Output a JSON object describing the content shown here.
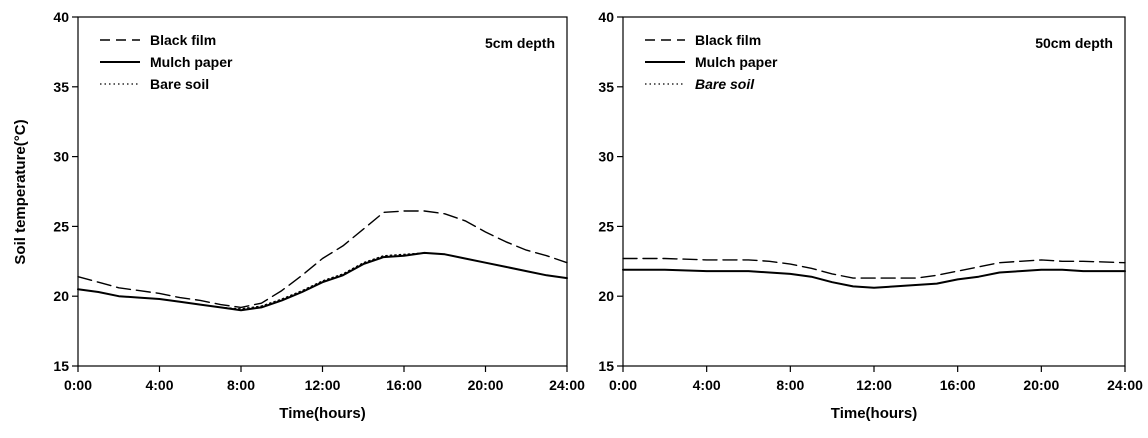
{
  "figure": {
    "ylabel": "Soil temperature(°C)"
  },
  "chart_data": [
    {
      "type": "line",
      "annotation": "5cm depth",
      "xlabel": "Time(hours)",
      "ylabel": "Soil temperature(°C)",
      "xlim": [
        0,
        24
      ],
      "ylim": [
        15,
        40
      ],
      "x_ticks": [
        "0:00",
        "4:00",
        "8:00",
        "12:00",
        "16:00",
        "20:00",
        "24:00"
      ],
      "y_ticks": [
        15,
        20,
        25,
        30,
        35,
        40
      ],
      "grid": false,
      "legend_position": "top-left",
      "series": [
        {
          "name": "Black film",
          "style": "dashed",
          "color": "#000000",
          "x": [
            0,
            1,
            2,
            3,
            4,
            5,
            6,
            7,
            8,
            9,
            10,
            11,
            12,
            13,
            14,
            15,
            16,
            17,
            18,
            19,
            20,
            21,
            22,
            23,
            24
          ],
          "y": [
            21.4,
            21.0,
            20.6,
            20.4,
            20.2,
            19.9,
            19.7,
            19.4,
            19.2,
            19.5,
            20.4,
            21.5,
            22.7,
            23.6,
            24.8,
            26.0,
            26.1,
            26.1,
            25.9,
            25.4,
            24.6,
            23.9,
            23.3,
            22.9,
            22.4
          ],
          "italic": false
        },
        {
          "name": "Mulch paper",
          "style": "solid",
          "color": "#000000",
          "x": [
            0,
            1,
            2,
            3,
            4,
            5,
            6,
            7,
            8,
            9,
            10,
            11,
            12,
            13,
            14,
            15,
            16,
            17,
            18,
            19,
            20,
            21,
            22,
            23,
            24
          ],
          "y": [
            20.5,
            20.3,
            20.0,
            19.9,
            19.8,
            19.6,
            19.4,
            19.2,
            19.0,
            19.2,
            19.7,
            20.3,
            21.0,
            21.5,
            22.3,
            22.8,
            22.9,
            23.1,
            23.0,
            22.7,
            22.4,
            22.1,
            21.8,
            21.5,
            21.3
          ],
          "italic": false
        },
        {
          "name": "Bare soil",
          "style": "dotted",
          "color": "#000000",
          "x": [
            0,
            1,
            2,
            3,
            4,
            5,
            6,
            7,
            8,
            9,
            10,
            11,
            12,
            13,
            14,
            15,
            16,
            17,
            18,
            19,
            20,
            21,
            22,
            23,
            24
          ],
          "y": [
            20.5,
            20.3,
            20.0,
            19.9,
            19.8,
            19.6,
            19.4,
            19.2,
            19.1,
            19.3,
            19.8,
            20.4,
            21.1,
            21.6,
            22.4,
            22.9,
            23.0,
            23.1,
            23.0,
            22.7,
            22.4,
            22.1,
            21.8,
            21.5,
            21.3
          ],
          "italic": false
        }
      ]
    },
    {
      "type": "line",
      "annotation": "50cm depth",
      "xlabel": "Time(hours)",
      "ylabel": "",
      "xlim": [
        0,
        24
      ],
      "ylim": [
        15,
        40
      ],
      "x_ticks": [
        "0:00",
        "4:00",
        "8:00",
        "12:00",
        "16:00",
        "20:00",
        "24:00"
      ],
      "y_ticks": [
        15,
        20,
        25,
        30,
        35,
        40
      ],
      "grid": false,
      "legend_position": "top-left",
      "series": [
        {
          "name": "Black film",
          "style": "dashed",
          "color": "#000000",
          "x": [
            0,
            2,
            4,
            6,
            7,
            8,
            9,
            10,
            11,
            12,
            13,
            14,
            15,
            16,
            17,
            18,
            19,
            20,
            21,
            22,
            24
          ],
          "y": [
            22.7,
            22.7,
            22.6,
            22.6,
            22.5,
            22.3,
            22.0,
            21.6,
            21.3,
            21.3,
            21.3,
            21.3,
            21.5,
            21.8,
            22.1,
            22.4,
            22.5,
            22.6,
            22.5,
            22.5,
            22.4
          ],
          "italic": false
        },
        {
          "name": "Mulch paper",
          "style": "solid",
          "color": "#000000",
          "x": [
            0,
            2,
            4,
            6,
            7,
            8,
            9,
            10,
            11,
            12,
            13,
            14,
            15,
            16,
            17,
            18,
            19,
            20,
            21,
            22,
            24
          ],
          "y": [
            21.9,
            21.9,
            21.8,
            21.8,
            21.7,
            21.6,
            21.4,
            21.0,
            20.7,
            20.6,
            20.7,
            20.8,
            20.9,
            21.2,
            21.4,
            21.7,
            21.8,
            21.9,
            21.9,
            21.8,
            21.8
          ],
          "italic": false
        },
        {
          "name": "Bare soil",
          "style": "dotted",
          "color": "#000000",
          "x": [
            0,
            2,
            4,
            6,
            7,
            8,
            9,
            10,
            11,
            12,
            13,
            14,
            15,
            16,
            17,
            18,
            19,
            20,
            21,
            22,
            24
          ],
          "y": [
            21.9,
            21.9,
            21.8,
            21.8,
            21.7,
            21.6,
            21.4,
            21.0,
            20.7,
            20.6,
            20.7,
            20.8,
            20.9,
            21.2,
            21.4,
            21.7,
            21.8,
            21.9,
            21.9,
            21.8,
            21.8
          ],
          "italic": true
        }
      ]
    }
  ]
}
